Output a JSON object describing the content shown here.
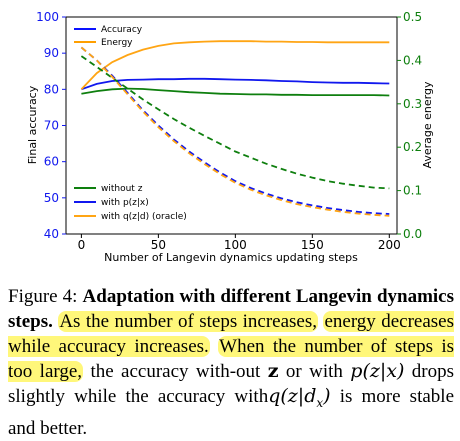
{
  "chart_data": {
    "type": "line",
    "x": [
      0,
      10,
      20,
      30,
      40,
      50,
      60,
      70,
      80,
      90,
      100,
      110,
      120,
      130,
      140,
      150,
      160,
      170,
      180,
      190,
      200
    ],
    "xlabel": "Number of Langevin dynamics updating steps",
    "ylabel": "Final accuracy",
    "y2label": "Average energy",
    "xlim": [
      -10,
      205
    ],
    "ylim": [
      40,
      100
    ],
    "y2lim": [
      0.0,
      0.5
    ],
    "xticks": [
      "0",
      "50",
      "100",
      "150",
      "200"
    ],
    "yticks": [
      "40",
      "50",
      "60",
      "70",
      "80",
      "90",
      "100"
    ],
    "y2ticks": [
      "0.0",
      "0.1",
      "0.2",
      "0.3",
      "0.4",
      "0.5"
    ],
    "grid": false,
    "legends": [
      {
        "location": "upper-left",
        "entries": [
          {
            "label": "Accuracy",
            "color": "#0a12ff",
            "style": "solid"
          },
          {
            "label": "Energy",
            "color": "#ff9f00",
            "style": "solid"
          }
        ]
      },
      {
        "location": "lower-left",
        "entries": [
          {
            "label": "without z",
            "color": "#0e7f0e"
          },
          {
            "label": "with p(z|x)",
            "color": "#1118ee"
          },
          {
            "label": "with q(z|d) (oracle)",
            "color": "#ffa514"
          }
        ]
      }
    ],
    "series": [
      {
        "name": "without z",
        "metric": "Accuracy",
        "axis": "left",
        "color": "#0e7f0e",
        "style": "solid",
        "values": [
          78.8,
          79.5,
          80.0,
          80.2,
          80.1,
          79.8,
          79.5,
          79.2,
          79.0,
          78.8,
          78.7,
          78.6,
          78.6,
          78.5,
          78.5,
          78.4,
          78.4,
          78.4,
          78.4,
          78.4,
          78.3
        ]
      },
      {
        "name": "with p(z|x)",
        "metric": "Accuracy",
        "axis": "left",
        "color": "#1118ee",
        "style": "solid",
        "values": [
          80.0,
          81.5,
          82.3,
          82.6,
          82.7,
          82.8,
          82.8,
          82.9,
          82.9,
          82.8,
          82.7,
          82.6,
          82.5,
          82.3,
          82.2,
          82.0,
          81.9,
          81.8,
          81.8,
          81.7,
          81.6
        ]
      },
      {
        "name": "with q(z|d) (oracle)",
        "metric": "Accuracy",
        "axis": "left",
        "color": "#ffa514",
        "style": "solid",
        "values": [
          80.0,
          84.5,
          87.5,
          89.5,
          91.0,
          92.0,
          92.7,
          93.0,
          93.2,
          93.3,
          93.3,
          93.3,
          93.2,
          93.2,
          93.1,
          93.1,
          93.0,
          93.0,
          93.0,
          93.0,
          93.0
        ]
      },
      {
        "name": "without z",
        "metric": "Energy",
        "axis": "right",
        "color": "#0e7f0e",
        "style": "dashed",
        "values": [
          0.41,
          0.385,
          0.36,
          0.335,
          0.31,
          0.287,
          0.265,
          0.245,
          0.226,
          0.208,
          0.19,
          0.176,
          0.162,
          0.15,
          0.139,
          0.13,
          0.122,
          0.116,
          0.111,
          0.107,
          0.105
        ]
      },
      {
        "name": "with p(z|x)",
        "metric": "Energy",
        "axis": "right",
        "color": "#1118ee",
        "style": "dashed",
        "values": [
          0.43,
          0.4,
          0.365,
          0.325,
          0.285,
          0.25,
          0.218,
          0.19,
          0.165,
          0.142,
          0.122,
          0.106,
          0.093,
          0.082,
          0.073,
          0.066,
          0.06,
          0.055,
          0.051,
          0.048,
          0.046
        ]
      },
      {
        "name": "with q(z|d) (oracle)",
        "metric": "Energy",
        "axis": "right",
        "color": "#ffa514",
        "style": "dashed",
        "values": [
          0.43,
          0.4,
          0.362,
          0.322,
          0.282,
          0.246,
          0.214,
          0.186,
          0.161,
          0.138,
          0.118,
          0.102,
          0.089,
          0.078,
          0.069,
          0.062,
          0.056,
          0.051,
          0.047,
          0.044,
          0.042
        ]
      }
    ]
  },
  "caption": {
    "label": "Figure 4:",
    "title": "Adaptation with different Langevin dynamics steps.",
    "hl_1": "As the number of steps increases,",
    "hl_2": "energy decreases while accuracy increases.",
    "hl_3": "When the number of steps is too large,",
    "text_4": "the accuracy with-out",
    "text_5": "or with",
    "text_6": "drops slightly while the accuracy with",
    "text_7": "is more stable and better.",
    "math_z": "z",
    "math_pzx": "p(z|x)",
    "math_qzd": "q(z|d",
    "math_qzd_sub": "x",
    "math_close": ")"
  }
}
